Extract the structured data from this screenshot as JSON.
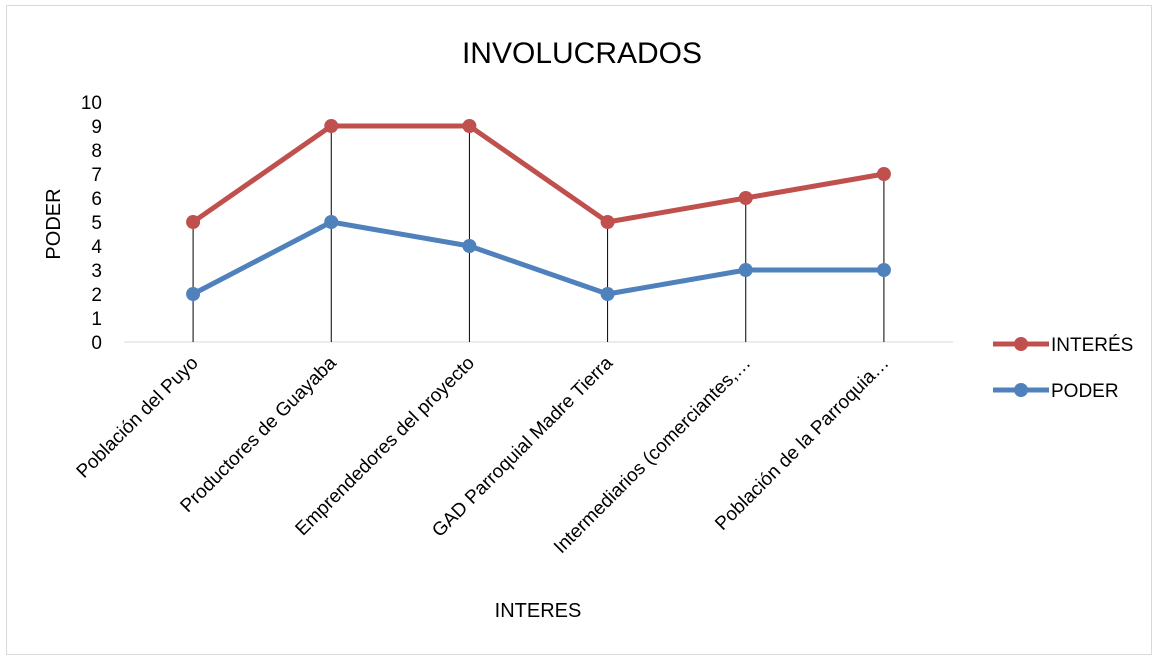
{
  "chart_data": {
    "type": "line",
    "title": "INVOLUCRADOS",
    "xlabel": "INTERES",
    "ylabel": "PODER",
    "ylim": [
      0,
      10
    ],
    "yticks": [
      0,
      1,
      2,
      3,
      4,
      5,
      6,
      7,
      8,
      9,
      10
    ],
    "grid": false,
    "legend_position": "right",
    "drop_lines": true,
    "categories": [
      "Población del Puyo",
      "Productores de Guayaba",
      "Emprendedores del proyecto",
      "GAD Parroquial Madre Tierra",
      "Intermediarios (comerciantes,…",
      "Población de la  Parroquia…"
    ],
    "series": [
      {
        "name": "INTERÉS",
        "color": "#c0504d",
        "values": [
          5,
          9,
          9,
          5,
          6,
          7
        ]
      },
      {
        "name": "PODER",
        "color": "#4f81bd",
        "values": [
          2,
          5,
          4,
          2,
          3,
          3
        ]
      }
    ]
  }
}
